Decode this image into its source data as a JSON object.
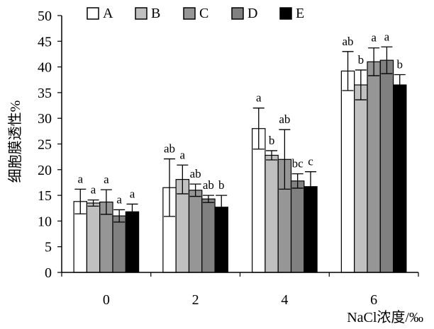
{
  "chart_data": {
    "type": "bar",
    "title": "",
    "xlabel": "NaCl浓度/‰",
    "ylabel": "细胞膜透性%",
    "categories": [
      "0",
      "2",
      "4",
      "6"
    ],
    "ylim": [
      0,
      50
    ],
    "yticks": [
      "0",
      "5",
      "10",
      "15",
      "20",
      "25",
      "30",
      "35",
      "40",
      "45",
      "50"
    ],
    "grid": false,
    "legend_position": "top",
    "series": [
      {
        "name": "A",
        "color": "#ffffff",
        "values": [
          13.8,
          16.5,
          28.0,
          39.2
        ],
        "errors": [
          2.4,
          5.6,
          4.0,
          3.8
        ],
        "labels": [
          "a",
          "ab",
          "a",
          "ab"
        ]
      },
      {
        "name": "B",
        "color": "#c0c0c0",
        "values": [
          13.5,
          18.1,
          22.8,
          36.5
        ],
        "errors": [
          0.6,
          2.8,
          0.9,
          2.9
        ],
        "labels": [
          "a",
          "a",
          "b",
          "b"
        ]
      },
      {
        "name": "C",
        "color": "#969696",
        "values": [
          13.7,
          16.0,
          22.0,
          41.0
        ],
        "errors": [
          2.4,
          1.2,
          5.8,
          2.7
        ],
        "labels": [
          "a",
          "ab",
          "ab",
          "a"
        ]
      },
      {
        "name": "D",
        "color": "#808080",
        "values": [
          11.0,
          14.3,
          17.8,
          41.3
        ],
        "errors": [
          1.2,
          0.7,
          1.4,
          2.6
        ],
        "labels": [
          "a",
          "ab",
          "bc",
          "a"
        ]
      },
      {
        "name": "E",
        "color": "#000000",
        "values": [
          11.8,
          12.7,
          16.7,
          36.5
        ],
        "errors": [
          1.5,
          2.3,
          2.9,
          2.0
        ],
        "labels": [
          "a",
          "b",
          "c",
          "b"
        ]
      }
    ]
  }
}
